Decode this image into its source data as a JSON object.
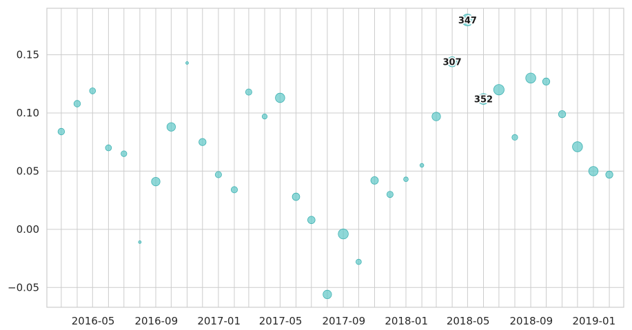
{
  "chart_data": {
    "type": "scatter",
    "title": "",
    "xlabel": "",
    "ylabel": "",
    "grid": true,
    "point_color": "#5fc8c8",
    "point_edge_color": "#3fb1b1",
    "grid_color": "#cccccc",
    "axes_border_color": "#cccccc",
    "xlim": [
      "2016-02-01",
      "2019-02-28"
    ],
    "ylim": [
      -0.067,
      0.19
    ],
    "xticks": [
      {
        "date": "2016-05-01",
        "label": "2016-05"
      },
      {
        "date": "2016-09-01",
        "label": "2016-09"
      },
      {
        "date": "2017-01-01",
        "label": "2017-01"
      },
      {
        "date": "2017-05-01",
        "label": "2017-05"
      },
      {
        "date": "2017-09-01",
        "label": "2017-09"
      },
      {
        "date": "2018-01-01",
        "label": "2018-01"
      },
      {
        "date": "2018-05-01",
        "label": "2018-05"
      },
      {
        "date": "2018-09-01",
        "label": "2018-09"
      },
      {
        "date": "2019-01-01",
        "label": "2019-01"
      }
    ],
    "yticks": [
      {
        "value": -0.05,
        "label": "−0.05"
      },
      {
        "value": 0.0,
        "label": "0.00"
      },
      {
        "value": 0.05,
        "label": "0.05"
      },
      {
        "value": 0.1,
        "label": "0.10"
      },
      {
        "value": 0.15,
        "label": "0.15"
      }
    ],
    "points": [
      {
        "date": "2016-02-29",
        "y": 0.084,
        "size": 60
      },
      {
        "date": "2016-03-31",
        "y": 0.108,
        "size": 60
      },
      {
        "date": "2016-04-30",
        "y": 0.119,
        "size": 50
      },
      {
        "date": "2016-05-31",
        "y": 0.07,
        "size": 50
      },
      {
        "date": "2016-06-30",
        "y": 0.065,
        "size": 45
      },
      {
        "date": "2016-07-31",
        "y": -0.011,
        "size": 10
      },
      {
        "date": "2016-08-31",
        "y": 0.041,
        "size": 100
      },
      {
        "date": "2016-09-30",
        "y": 0.088,
        "size": 100
      },
      {
        "date": "2016-10-31",
        "y": 0.143,
        "size": 10
      },
      {
        "date": "2016-11-30",
        "y": 0.075,
        "size": 70
      },
      {
        "date": "2016-12-31",
        "y": 0.047,
        "size": 55
      },
      {
        "date": "2017-01-31",
        "y": 0.034,
        "size": 55
      },
      {
        "date": "2017-02-28",
        "y": 0.118,
        "size": 55
      },
      {
        "date": "2017-03-31",
        "y": 0.097,
        "size": 35
      },
      {
        "date": "2017-04-30",
        "y": 0.113,
        "size": 120
      },
      {
        "date": "2017-05-31",
        "y": 0.028,
        "size": 75
      },
      {
        "date": "2017-06-30",
        "y": 0.008,
        "size": 75
      },
      {
        "date": "2017-07-31",
        "y": -0.056,
        "size": 100
      },
      {
        "date": "2017-08-31",
        "y": -0.004,
        "size": 140
      },
      {
        "date": "2017-09-30",
        "y": -0.028,
        "size": 40
      },
      {
        "date": "2017-10-31",
        "y": 0.042,
        "size": 80
      },
      {
        "date": "2017-11-30",
        "y": 0.03,
        "size": 55
      },
      {
        "date": "2017-12-31",
        "y": 0.043,
        "size": 30
      },
      {
        "date": "2018-01-31",
        "y": 0.055,
        "size": 20
      },
      {
        "date": "2018-02-28",
        "y": 0.097,
        "size": 100
      },
      {
        "date": "2018-03-31",
        "y": 0.144,
        "size": 140,
        "label": "307"
      },
      {
        "date": "2018-04-30",
        "y": 0.18,
        "size": 190,
        "label": "347"
      },
      {
        "date": "2018-05-31",
        "y": 0.112,
        "size": 160,
        "label": "352"
      },
      {
        "date": "2018-06-30",
        "y": 0.12,
        "size": 150
      },
      {
        "date": "2018-07-31",
        "y": 0.079,
        "size": 45
      },
      {
        "date": "2018-08-31",
        "y": 0.13,
        "size": 140
      },
      {
        "date": "2018-09-30",
        "y": 0.127,
        "size": 70
      },
      {
        "date": "2018-10-31",
        "y": 0.099,
        "size": 70
      },
      {
        "date": "2018-11-30",
        "y": 0.071,
        "size": 140
      },
      {
        "date": "2018-12-31",
        "y": 0.05,
        "size": 120
      },
      {
        "date": "2019-01-31",
        "y": 0.047,
        "size": 70
      }
    ]
  }
}
